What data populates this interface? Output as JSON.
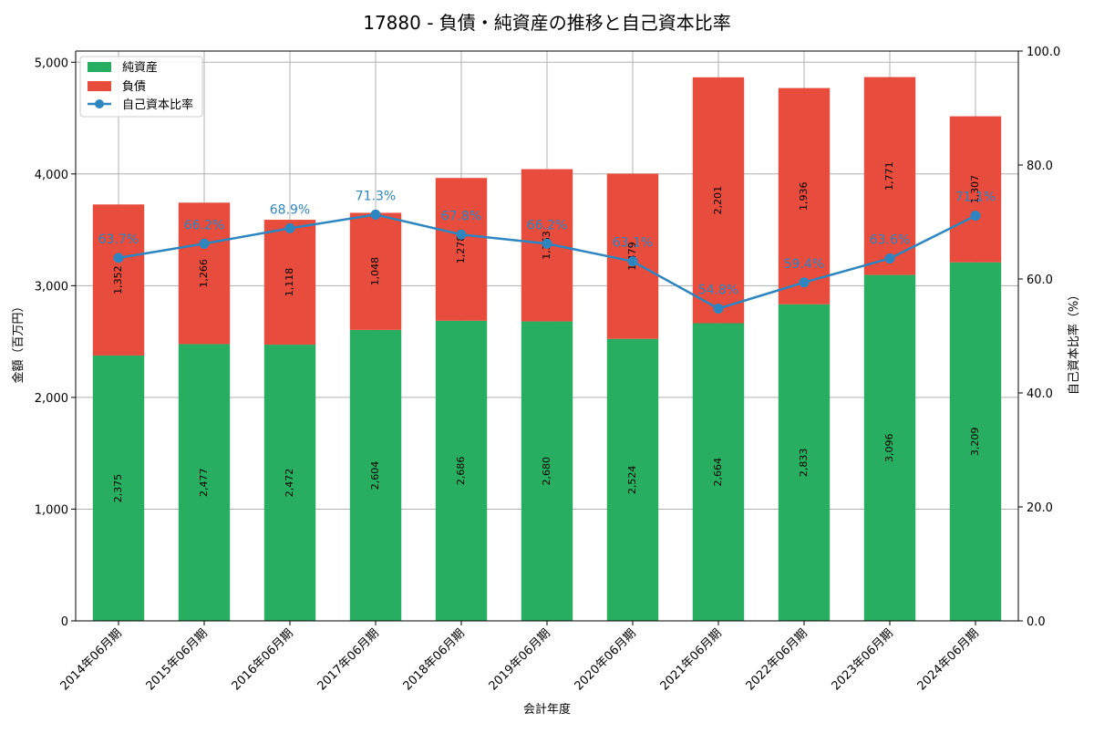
{
  "chart_data": {
    "type": "bar",
    "stacked": true,
    "title": "17880 - 負債・純資産の推移と自己資本比率",
    "xlabel": "会計年度",
    "ylabel": "金額（百万円）",
    "y2label": "自己資本比率（%）",
    "ylim": [
      0,
      5100
    ],
    "y2lim": [
      0,
      100
    ],
    "yticks": [
      0,
      1000,
      2000,
      3000,
      4000,
      5000
    ],
    "ytick_labels": [
      "0",
      "1,000",
      "2,000",
      "3,000",
      "4,000",
      "5,000"
    ],
    "y2ticks": [
      0,
      20,
      40,
      60,
      80,
      100
    ],
    "y2tick_labels": [
      "0.0",
      "20.0",
      "40.0",
      "60.0",
      "80.0",
      "100.0"
    ],
    "grid": true,
    "legend_position": "top-left",
    "categories": [
      "2014年06月期",
      "2015年06月期",
      "2016年06月期",
      "2017年06月期",
      "2018年06月期",
      "2019年06月期",
      "2020年06月期",
      "2021年06月期",
      "2022年06月期",
      "2023年06月期",
      "2024年06月期"
    ],
    "series": [
      {
        "name": "純資産",
        "kind": "bar",
        "color": "#27ae60",
        "values": [
          2375,
          2477,
          2472,
          2604,
          2686,
          2680,
          2524,
          2664,
          2833,
          3096,
          3209
        ],
        "labels": [
          "2,375",
          "2,477",
          "2,472",
          "2,604",
          "2,686",
          "2,680",
          "2,524",
          "2,664",
          "2,833",
          "3,096",
          "3,209"
        ]
      },
      {
        "name": "負債",
        "kind": "bar",
        "color": "#e74c3c",
        "values": [
          1352,
          1266,
          1118,
          1048,
          1278,
          1363,
          1479,
          2201,
          1936,
          1771,
          1307
        ],
        "labels": [
          "1,352",
          "1,266",
          "1,118",
          "1,048",
          "1,278",
          "1,363",
          "1,479",
          "2,201",
          "1,936",
          "1,771",
          "1,307"
        ]
      },
      {
        "name": "自己資本比率",
        "kind": "line",
        "axis": "right",
        "color": "#2e86c1",
        "values": [
          63.7,
          66.2,
          68.9,
          71.3,
          67.8,
          66.2,
          63.1,
          54.8,
          59.4,
          63.6,
          71.1
        ],
        "labels": [
          "63.7%",
          "66.2%",
          "68.9%",
          "71.3%",
          "67.8%",
          "66.2%",
          "63.1%",
          "54.8%",
          "59.4%",
          "63.6%",
          "71.1%"
        ]
      }
    ]
  }
}
